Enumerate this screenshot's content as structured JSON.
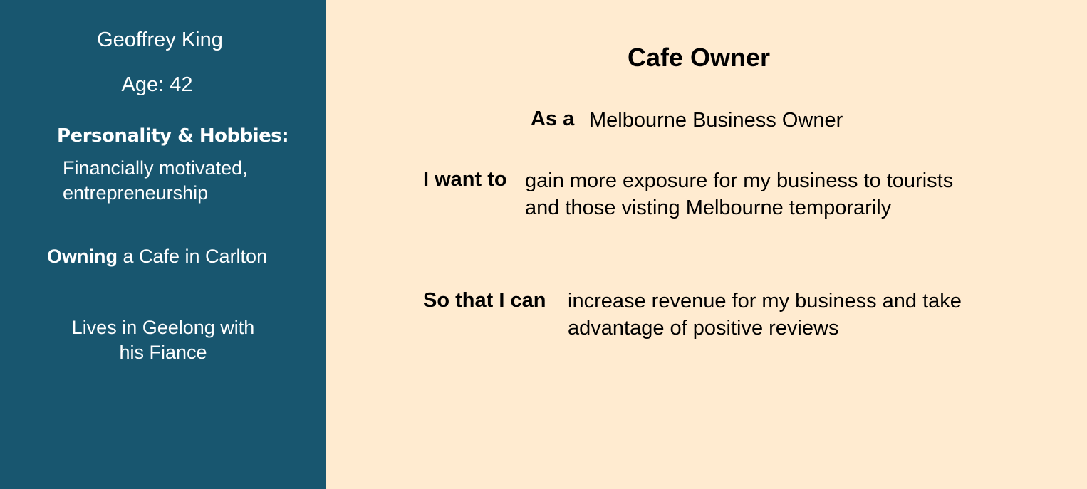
{
  "persona": {
    "name": "Geoffrey King",
    "age": "Age: 42",
    "personality_heading": "Personality & Hobbies:",
    "personality_line1": "Financially motivated,",
    "personality_line2": "entrepreneurship",
    "occupation_bold": "Owning",
    "occupation_rest": " a Cafe in Carlton",
    "residence_line1": "Lives in Geelong with",
    "residence_line2": "his Fiance"
  },
  "story": {
    "title": "Cafe Owner",
    "as_label": "As a",
    "as_value": "Melbourne Business Owner",
    "want_label": "I want to",
    "want_line1": "gain more exposure for my business to tourists",
    "want_line2": "and those visting Melbourne temporarily",
    "so_label": "So that I can",
    "so_line1": "increase revenue for my business and take",
    "so_line2": "advantage of positive reviews"
  },
  "colors": {
    "sidebar_bg": "#18566f",
    "main_bg": "#ffebd0",
    "sidebar_text": "#ffffff",
    "main_text": "#000000"
  }
}
